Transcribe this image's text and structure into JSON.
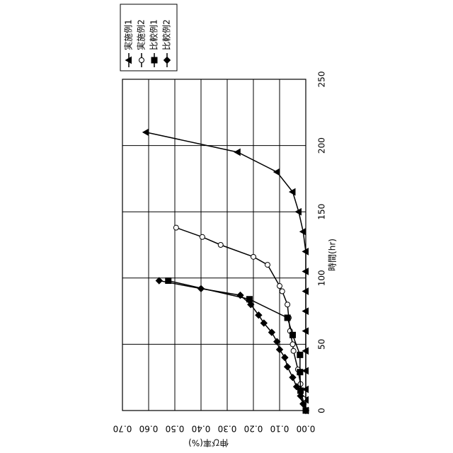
{
  "chart_data": {
    "type": "line",
    "x_label": "時間(hr)",
    "y_label": "伸び率(%)",
    "xlim": [
      0,
      250
    ],
    "xticks": [
      0,
      50,
      100,
      150,
      200,
      250
    ],
    "ylim": [
      0,
      0.7
    ],
    "yticks": [
      {
        "value": 0,
        "label": "0.00"
      },
      {
        "value": 0.1,
        "label": "0.10"
      },
      {
        "value": 0.2,
        "label": "0.20"
      },
      {
        "value": 0.3,
        "label": "0.30"
      },
      {
        "value": 0.4,
        "label": "0.40"
      },
      {
        "value": 0.5,
        "label": "0.50"
      },
      {
        "value": 0.6,
        "label": "0.60"
      },
      {
        "value": 0.7,
        "label": "0.70"
      }
    ],
    "grid": true,
    "legend": "upper right",
    "rotation": -90,
    "series": [
      {
        "name": "実施例1",
        "color": "#000000",
        "marker": "triangle",
        "x": [
          0,
          8,
          16,
          30,
          45,
          60,
          75,
          90,
          105,
          120,
          135,
          150,
          165,
          180,
          195,
          210
        ],
        "values": [
          0,
          0,
          0,
          0,
          0,
          0,
          0,
          0,
          0,
          0,
          0.01,
          0.027,
          0.05,
          0.11,
          0.26,
          0.61
        ]
      },
      {
        "name": "実施例2",
        "color": "#000000",
        "marker": "circle",
        "x": [
          0,
          9,
          20,
          31,
          45,
          50,
          60,
          70,
          80,
          90,
          94,
          110,
          116,
          125,
          131,
          138
        ],
        "values": [
          0,
          0.01,
          0.02,
          0.03,
          0.047,
          0.05,
          0.06,
          0.065,
          0.07,
          0.09,
          0.1,
          0.146,
          0.2,
          0.325,
          0.395,
          0.495
        ]
      },
      {
        "name": "比較例1",
        "color": "#000000",
        "marker": "square",
        "x": [
          0,
          15,
          29,
          42,
          57,
          70,
          84,
          98
        ],
        "values": [
          0,
          0.02,
          0.022,
          0.022,
          0.05,
          0.07,
          0.215,
          0.525
        ]
      },
      {
        "name": "比較例2",
        "color": "#000000",
        "marker": "diamond",
        "x": [
          0,
          5,
          11,
          18,
          25,
          33,
          40,
          46,
          52,
          59,
          66,
          72,
          80,
          87,
          92,
          98
        ],
        "values": [
          0,
          0.01,
          0.02,
          0.035,
          0.05,
          0.07,
          0.08,
          0.1,
          0.11,
          0.13,
          0.16,
          0.18,
          0.21,
          0.25,
          0.4,
          0.56
        ]
      }
    ]
  }
}
